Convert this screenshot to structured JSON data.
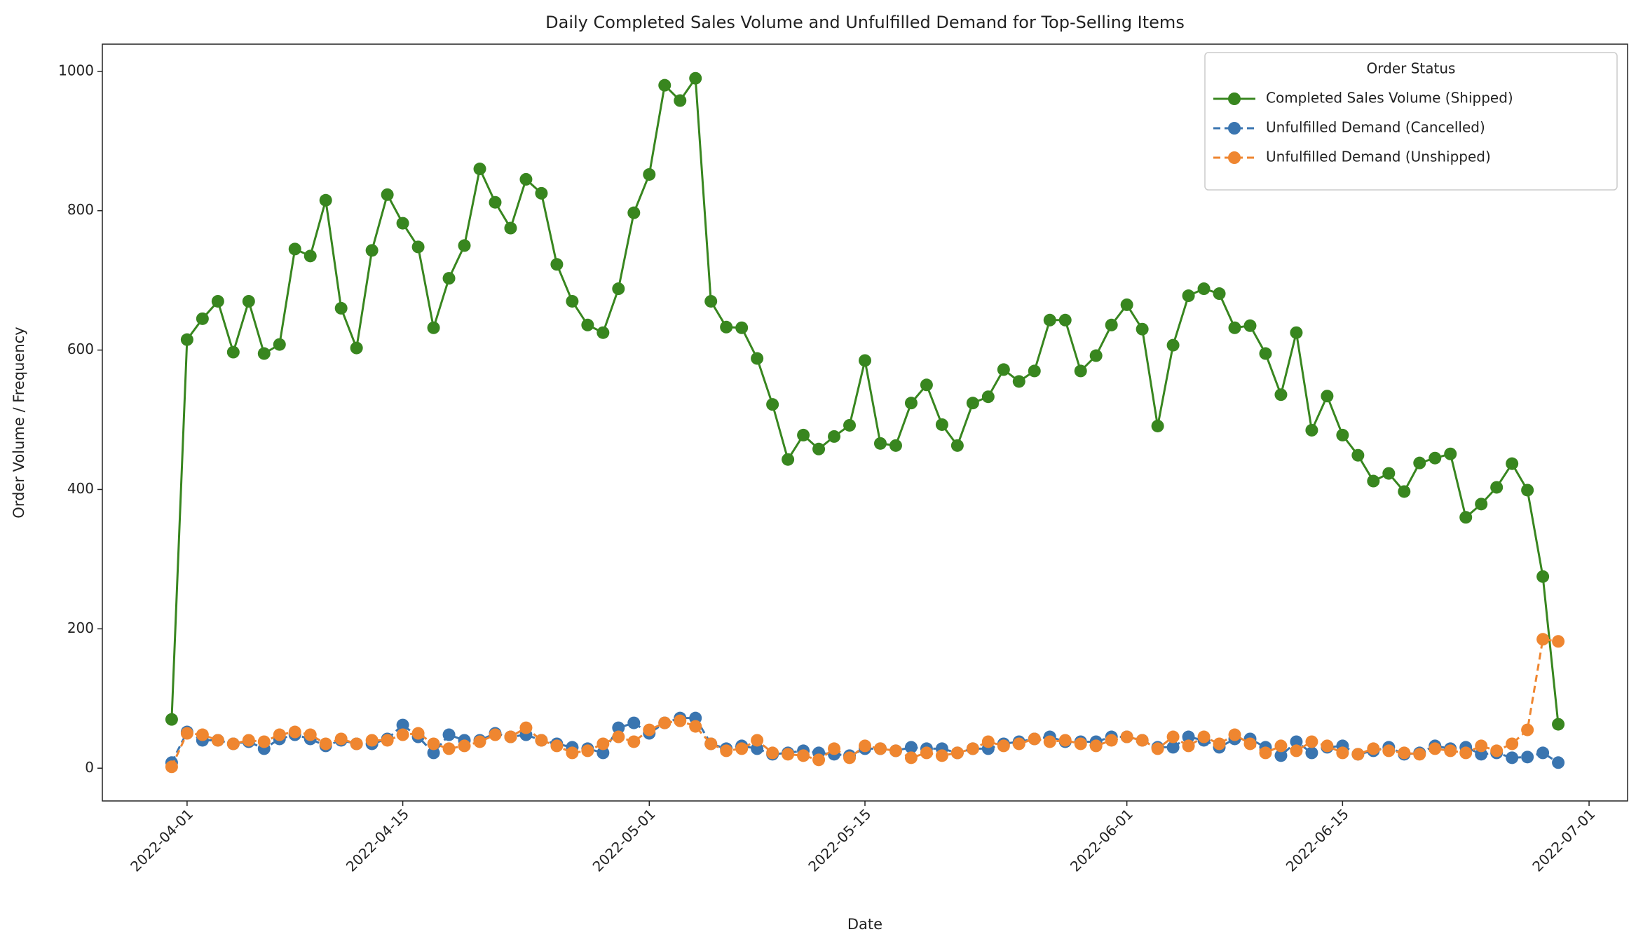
{
  "chart_data": {
    "type": "line",
    "title": "Daily Completed Sales Volume and Unfulfilled Demand for Top-Selling Items",
    "xlabel": "Date",
    "ylabel": "Order Volume / Frequency",
    "legend_title": "Order Status",
    "legend_loc": "upper right",
    "grid": false,
    "x": [
      "2022-03-31",
      "2022-04-01",
      "2022-04-02",
      "2022-04-03",
      "2022-04-04",
      "2022-04-05",
      "2022-04-06",
      "2022-04-07",
      "2022-04-08",
      "2022-04-09",
      "2022-04-10",
      "2022-04-11",
      "2022-04-12",
      "2022-04-13",
      "2022-04-14",
      "2022-04-15",
      "2022-04-16",
      "2022-04-17",
      "2022-04-18",
      "2022-04-19",
      "2022-04-20",
      "2022-04-21",
      "2022-04-22",
      "2022-04-23",
      "2022-04-24",
      "2022-04-25",
      "2022-04-26",
      "2022-04-27",
      "2022-04-28",
      "2022-04-29",
      "2022-04-30",
      "2022-05-01",
      "2022-05-02",
      "2022-05-03",
      "2022-05-04",
      "2022-05-05",
      "2022-05-06",
      "2022-05-07",
      "2022-05-08",
      "2022-05-09",
      "2022-05-10",
      "2022-05-11",
      "2022-05-12",
      "2022-05-13",
      "2022-05-14",
      "2022-05-15",
      "2022-05-16",
      "2022-05-17",
      "2022-05-18",
      "2022-05-19",
      "2022-05-20",
      "2022-05-21",
      "2022-05-22",
      "2022-05-23",
      "2022-05-24",
      "2022-05-25",
      "2022-05-26",
      "2022-05-27",
      "2022-05-28",
      "2022-05-29",
      "2022-05-30",
      "2022-05-31",
      "2022-06-01",
      "2022-06-02",
      "2022-06-03",
      "2022-06-04",
      "2022-06-05",
      "2022-06-06",
      "2022-06-07",
      "2022-06-08",
      "2022-06-09",
      "2022-06-10",
      "2022-06-11",
      "2022-06-12",
      "2022-06-13",
      "2022-06-14",
      "2022-06-15",
      "2022-06-16",
      "2022-06-17",
      "2022-06-18",
      "2022-06-19",
      "2022-06-20",
      "2022-06-21",
      "2022-06-22",
      "2022-06-23",
      "2022-06-24",
      "2022-06-25",
      "2022-06-26",
      "2022-06-27",
      "2022-06-28",
      "2022-06-29"
    ],
    "series": [
      {
        "name": "Completed Sales Volume (Shipped)",
        "color": "#38861f",
        "linestyle": "solid",
        "values": [
          70,
          615,
          645,
          670,
          597,
          670,
          595,
          608,
          745,
          735,
          815,
          660,
          603,
          743,
          823,
          782,
          748,
          632,
          703,
          750,
          860,
          812,
          775,
          845,
          825,
          723,
          670,
          636,
          625,
          688,
          797,
          852,
          980,
          958,
          990,
          670,
          633,
          632,
          588,
          522,
          443,
          478,
          458,
          476,
          492,
          585,
          466,
          463,
          524,
          550,
          493,
          463,
          524,
          533,
          572,
          555,
          570,
          643,
          643,
          570,
          592,
          636,
          665,
          630,
          491,
          607,
          678,
          688,
          681,
          632,
          635,
          595,
          536,
          625,
          485,
          534,
          478,
          449,
          412,
          423,
          397,
          438,
          445,
          451,
          360,
          379,
          403,
          437,
          399,
          275,
          63
        ]
      },
      {
        "name": "Unfulfilled Demand (Cancelled)",
        "color": "#3a75b0",
        "linestyle": "dashed",
        "values": [
          8,
          52,
          40,
          40,
          35,
          38,
          28,
          42,
          48,
          42,
          32,
          40,
          35,
          35,
          42,
          62,
          45,
          22,
          48,
          40,
          40,
          50,
          45,
          48,
          40,
          35,
          30,
          28,
          22,
          58,
          65,
          50,
          65,
          72,
          72,
          35,
          28,
          32,
          28,
          20,
          22,
          25,
          22,
          20,
          18,
          28,
          28,
          25,
          30,
          28,
          28,
          22,
          28,
          28,
          35,
          38,
          42,
          45,
          38,
          38,
          38,
          45,
          45,
          40,
          30,
          30,
          45,
          40,
          30,
          42,
          42,
          30,
          18,
          38,
          22,
          30,
          32,
          20,
          25,
          30,
          20,
          22,
          32,
          28,
          30,
          20,
          22,
          15,
          16,
          22,
          8
        ]
      },
      {
        "name": "Unfulfilled Demand (Unshipped)",
        "color": "#ef8630",
        "linestyle": "dashed",
        "values": [
          2,
          50,
          48,
          40,
          35,
          40,
          38,
          48,
          52,
          48,
          35,
          42,
          35,
          40,
          40,
          48,
          50,
          35,
          28,
          32,
          38,
          48,
          45,
          58,
          40,
          32,
          22,
          25,
          35,
          45,
          38,
          55,
          65,
          68,
          60,
          35,
          25,
          28,
          40,
          22,
          20,
          18,
          12,
          28,
          15,
          32,
          28,
          25,
          15,
          22,
          18,
          22,
          28,
          38,
          32,
          35,
          42,
          38,
          40,
          35,
          32,
          40,
          45,
          40,
          28,
          45,
          32,
          45,
          35,
          48,
          35,
          22,
          32,
          25,
          38,
          32,
          22,
          20,
          28,
          25,
          22,
          20,
          28,
          25,
          22,
          32,
          25,
          35,
          55,
          185,
          182
        ]
      }
    ],
    "xlim": [
      "2022-03-26T12:00",
      "2022-07-03T12:00"
    ],
    "xticks": [
      "2022-04-01",
      "2022-04-15",
      "2022-05-01",
      "2022-05-15",
      "2022-06-01",
      "2022-06-15",
      "2022-07-01"
    ],
    "ylim": [
      -47,
      1039
    ],
    "yticks": [
      0,
      200,
      400,
      600,
      800,
      1000
    ]
  }
}
